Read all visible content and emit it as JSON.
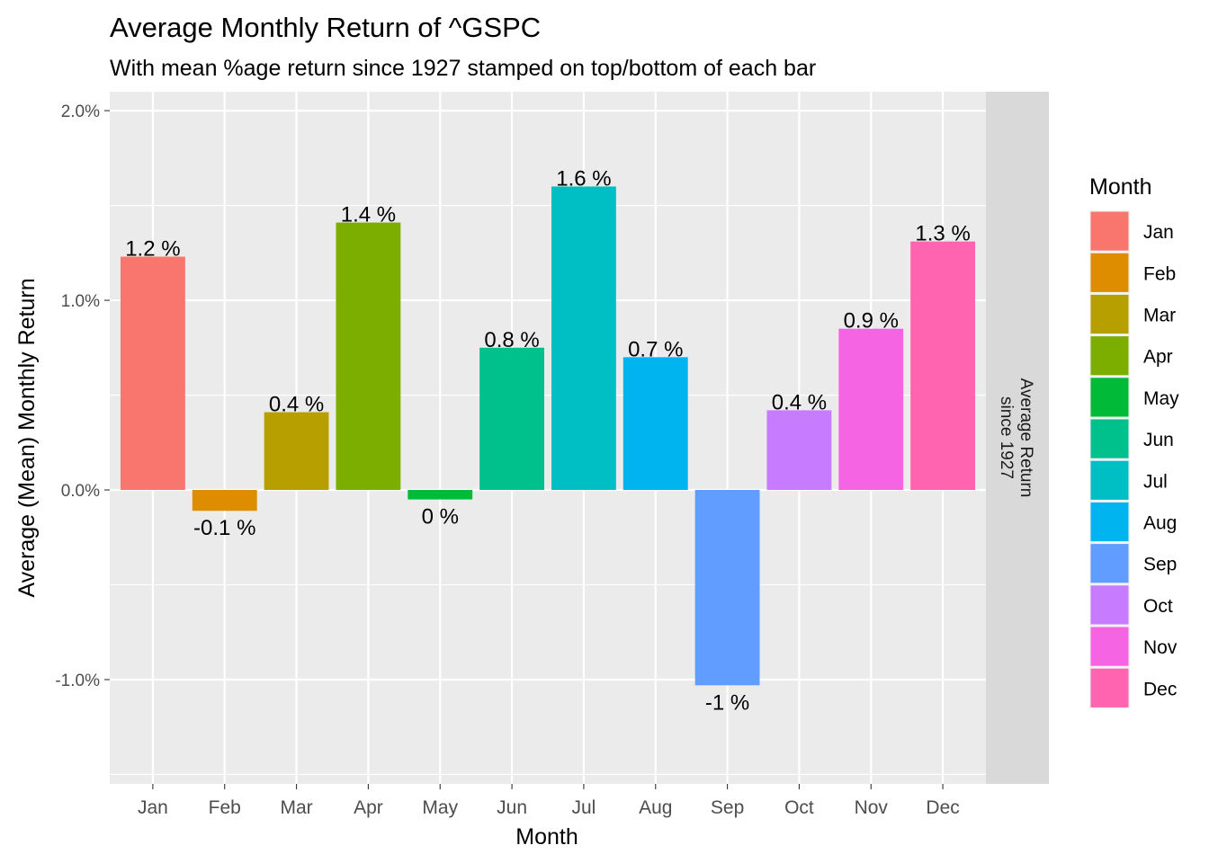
{
  "chart_data": {
    "type": "bar",
    "title": "Average Monthly Return of ^GSPC",
    "subtitle": "With mean %age return since 1927 stamped on top/bottom of each bar",
    "xlabel": "Month",
    "ylabel": "Average (Mean) Monthly Return",
    "facet_label": "Average Return since 1927",
    "categories": [
      "Jan",
      "Feb",
      "Mar",
      "Apr",
      "May",
      "Jun",
      "Jul",
      "Aug",
      "Sep",
      "Oct",
      "Nov",
      "Dec"
    ],
    "values": [
      1.23,
      -0.11,
      0.41,
      1.41,
      -0.05,
      0.75,
      1.6,
      0.7,
      -1.03,
      0.42,
      0.85,
      1.31
    ],
    "labels": [
      "1.2 %",
      "-0.1 %",
      "0.4 %",
      "1.4 %",
      "0 %",
      "0.8 %",
      "1.6 %",
      "0.7 %",
      "-1 %",
      "0.4 %",
      "0.9 %",
      "1.3 %"
    ],
    "ylim": [
      -1.55,
      2.1
    ],
    "yticks": [
      -1.0,
      0.0,
      1.0,
      2.0
    ],
    "ytick_labels": [
      "-1.0%",
      "0.0%",
      "1.0%",
      "2.0%"
    ],
    "grid": true,
    "legend": {
      "title": "Month",
      "position": "right",
      "entries": [
        "Jan",
        "Feb",
        "Mar",
        "Apr",
        "May",
        "Jun",
        "Jul",
        "Aug",
        "Sep",
        "Oct",
        "Nov",
        "Dec"
      ]
    },
    "colors": [
      "#F8766D",
      "#DE8C00",
      "#B79F00",
      "#7CAE00",
      "#00BA38",
      "#00C08B",
      "#00BFC4",
      "#00B4F0",
      "#619CFF",
      "#C77CFF",
      "#F564E3",
      "#FF64B0"
    ]
  }
}
